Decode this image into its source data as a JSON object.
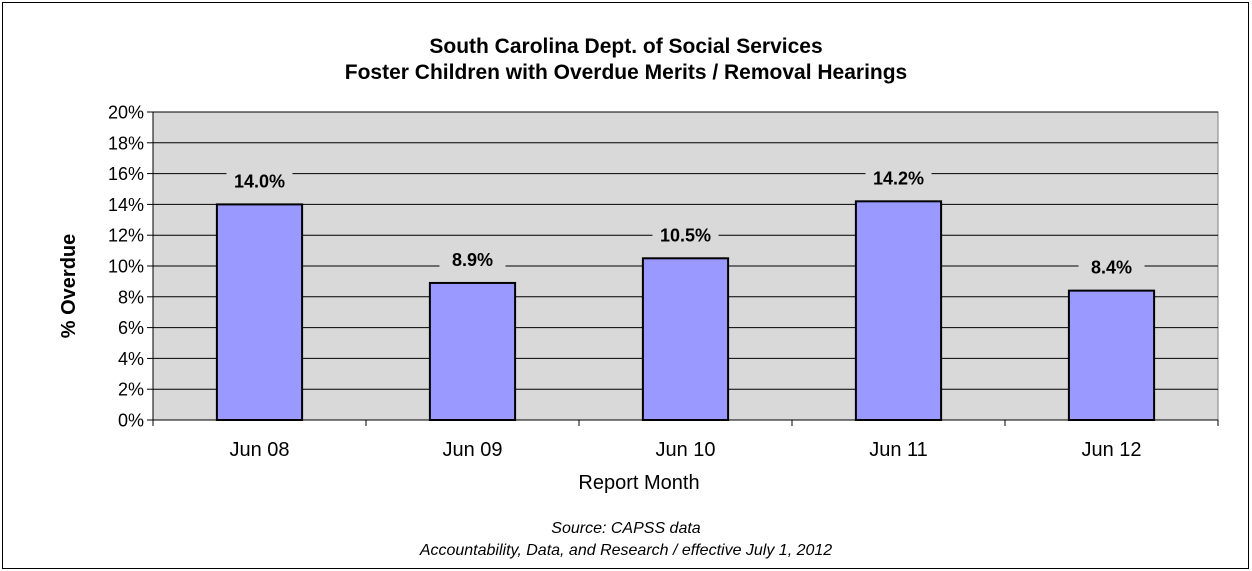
{
  "chart_data": {
    "type": "bar",
    "title": [
      "South Carolina Dept. of Social Services",
      "Foster Children with Overdue Merits / Removal Hearings"
    ],
    "xlabel": "Report Month",
    "ylabel": "% Overdue",
    "categories": [
      "Jun 08",
      "Jun 09",
      "Jun 10",
      "Jun 11",
      "Jun 12"
    ],
    "values": [
      14.0,
      8.9,
      10.5,
      14.2,
      8.4
    ],
    "data_labels": [
      "14.0%",
      "8.9%",
      "10.5%",
      "14.2%",
      "8.4%"
    ],
    "ylim": [
      0,
      20
    ],
    "yticks": [
      0,
      2,
      4,
      6,
      8,
      10,
      12,
      14,
      16,
      18,
      20
    ],
    "ytick_labels": [
      "0%",
      "2%",
      "4%",
      "6%",
      "8%",
      "10%",
      "12%",
      "14%",
      "16%",
      "18%",
      "20%"
    ],
    "grid": true,
    "legend": "none",
    "colors": {
      "bar": "#9999ff",
      "plot_background": "#d9d9d9",
      "gridline": "#000000"
    }
  },
  "source": {
    "line1": "Source: CAPSS data",
    "line2": "Accountability, Data, and Research / effective July 1, 2012"
  }
}
